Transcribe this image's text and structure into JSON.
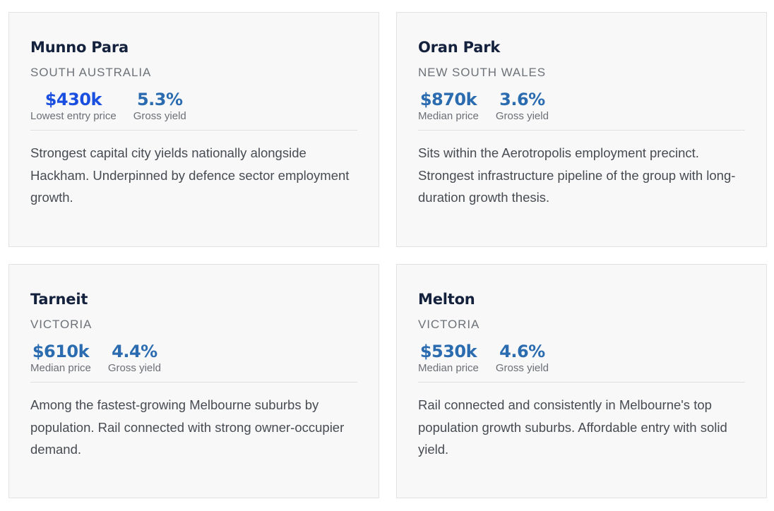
{
  "cards": [
    {
      "name": "Munno Para",
      "state": "SOUTH AUSTRALIA",
      "price": "$430k",
      "price_label": "Lowest entry price",
      "yield": "5.3%",
      "yield_label": "Gross yield",
      "description": "Strongest capital city yields nationally alongside Hackham. Underpinned by defence sector employment growth."
    },
    {
      "name": "Oran Park",
      "state": "NEW SOUTH WALES",
      "price": "$870k",
      "price_label": "Median price",
      "yield": "3.6%",
      "yield_label": "Gross yield",
      "description": "Sits within the Aerotropolis employment precinct. Strongest infrastructure pipeline of the group with long-duration growth thesis."
    },
    {
      "name": "Tarneit",
      "state": "VICTORIA",
      "price": "$610k",
      "price_label": "Median price",
      "yield": "4.4%",
      "yield_label": "Gross yield",
      "description": "Among the fastest-growing Melbourne suburbs by population. Rail connected with strong owner-occupier demand."
    },
    {
      "name": "Melton",
      "state": "VICTORIA",
      "price": "$530k",
      "price_label": "Median price",
      "yield": "4.6%",
      "yield_label": "Gross yield",
      "description": "Rail connected and consistently in Melbourne's top population growth suburbs. Affordable entry with solid yield."
    }
  ],
  "colors": {
    "title": "#14213d",
    "highlight_price": "#1a4fe0",
    "stat_value": "#2b6cb0",
    "card_background": "#f8f8f8"
  }
}
